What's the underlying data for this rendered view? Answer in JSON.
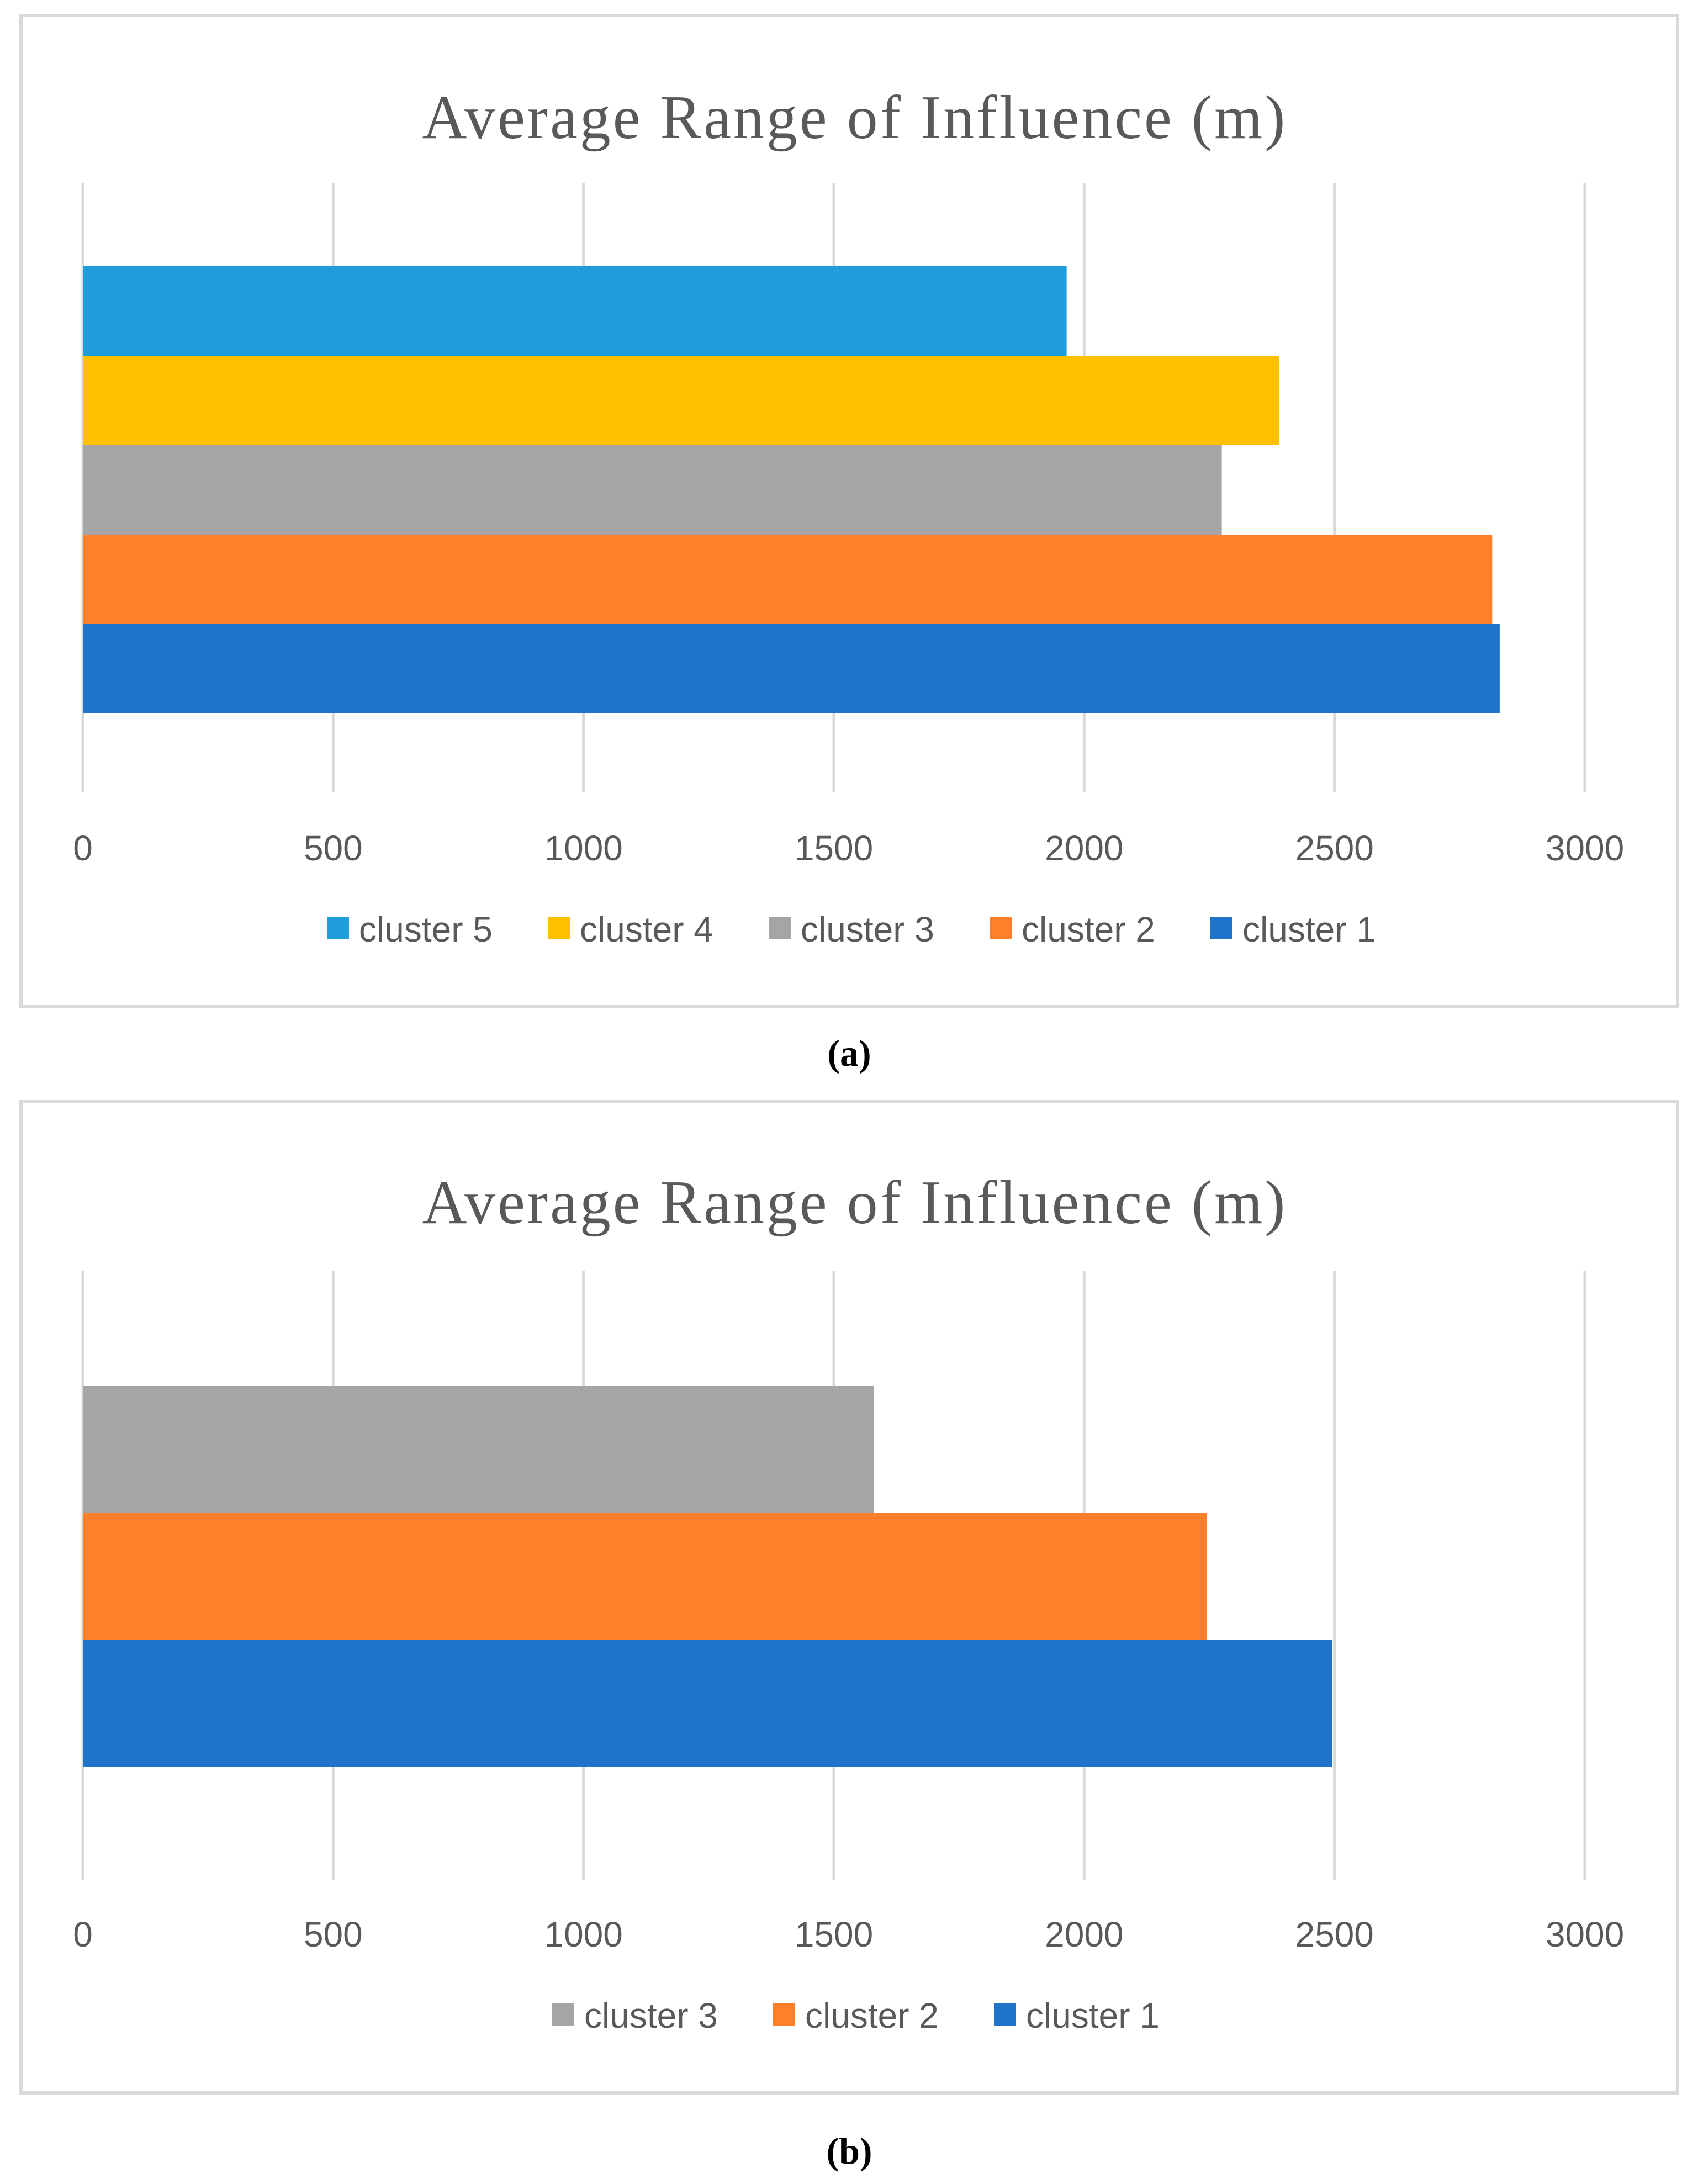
{
  "colors": {
    "cluster 1": "#1f73c9",
    "cluster 2": "#ff7f2a",
    "cluster 3": "#a5a5a5",
    "cluster 4": "#ffc000",
    "cluster 5": "#1e9cdb",
    "grid": "#d9d9d9",
    "frame": "#d9d9d9"
  },
  "chart_data": [
    {
      "type": "bar",
      "orientation": "horizontal",
      "caption": "(a)",
      "title": "Average Range of Influence (m)",
      "xlim": [
        0,
        3000
      ],
      "ticks": [
        0,
        500,
        1000,
        1500,
        2000,
        2500,
        3000
      ],
      "tick_labels": [
        "0",
        "500",
        "1000",
        "1500",
        "2000",
        "2500",
        "3000"
      ],
      "grid": true,
      "legend_position": "bottom",
      "legend": [
        "cluster 5",
        "cluster 4",
        "cluster 3",
        "cluster 2",
        "cluster 1"
      ],
      "series": [
        {
          "name": "cluster 5",
          "value": 1965
        },
        {
          "name": "cluster 4",
          "value": 2390
        },
        {
          "name": "cluster 3",
          "value": 2275
        },
        {
          "name": "cluster 2",
          "value": 2815
        },
        {
          "name": "cluster 1",
          "value": 2830
        }
      ]
    },
    {
      "type": "bar",
      "orientation": "horizontal",
      "caption": "(b)",
      "title": "Average Range of Influence (m)",
      "xlim": [
        0,
        3000
      ],
      "ticks": [
        0,
        500,
        1000,
        1500,
        2000,
        2500,
        3000
      ],
      "tick_labels": [
        "0",
        "500",
        "1000",
        "1500",
        "2000",
        "2500",
        "3000"
      ],
      "grid": true,
      "legend_position": "bottom",
      "legend": [
        "cluster 3",
        "cluster 2",
        "cluster 1"
      ],
      "series": [
        {
          "name": "cluster 3",
          "value": 1580
        },
        {
          "name": "cluster 2",
          "value": 2245
        },
        {
          "name": "cluster 1",
          "value": 2495
        }
      ]
    }
  ]
}
